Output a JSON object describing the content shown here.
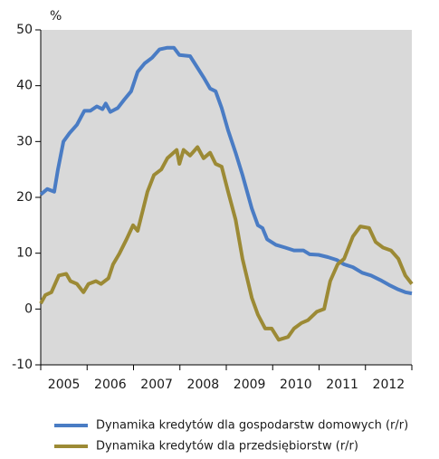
{
  "chart_data": {
    "type": "line",
    "y_unit": "%",
    "xlim": [
      2005,
      2013
    ],
    "xticks": [
      2005,
      2006,
      2007,
      2008,
      2009,
      2010,
      2011,
      2012,
      2013
    ],
    "year_labels": [
      "2005",
      "2006",
      "2007",
      "2008",
      "2009",
      "2010",
      "2011",
      "2012"
    ],
    "ylim": [
      -10,
      50
    ],
    "yticks": [
      -10,
      0,
      10,
      20,
      30,
      40,
      50
    ],
    "background": "#d9d9d9",
    "series": [
      {
        "name": "Dynamika kredytów dla gospodarstw domowych (r/r)",
        "color": "#4a7cc4",
        "x": [
          2005.0,
          2005.14,
          2005.29,
          2005.37,
          2005.49,
          2005.62,
          2005.78,
          2005.94,
          2006.07,
          2006.21,
          2006.33,
          2006.4,
          2006.5,
          2006.66,
          2006.8,
          2006.95,
          2007.09,
          2007.24,
          2007.4,
          2007.56,
          2007.73,
          2007.87,
          2007.99,
          2008.22,
          2008.32,
          2008.51,
          2008.65,
          2008.77,
          2008.9,
          2009.04,
          2009.2,
          2009.35,
          2009.55,
          2009.68,
          2009.78,
          2009.88,
          2010.07,
          2010.27,
          2010.46,
          2010.66,
          2010.8,
          2010.99,
          2011.19,
          2011.38,
          2011.54,
          2011.73,
          2011.93,
          2012.12,
          2012.32,
          2012.51,
          2012.71,
          2012.86,
          2013.0
        ],
        "values": [
          20.5,
          21.5,
          21,
          25,
          30,
          31.5,
          33,
          35.5,
          35.5,
          36.3,
          35.8,
          36.8,
          35.3,
          36,
          37.5,
          39,
          42.5,
          44,
          45,
          46.5,
          46.8,
          46.8,
          45.5,
          45.3,
          44,
          41.5,
          39.5,
          39,
          36,
          32,
          28,
          24,
          18,
          15,
          14.5,
          12.5,
          11.5,
          11,
          10.5,
          10.5,
          9.8,
          9.7,
          9.3,
          8.8,
          8,
          7.5,
          6.5,
          6,
          5.2,
          4.3,
          3.5,
          3,
          2.8
        ]
      },
      {
        "name": "Dynamika kredytów dla przedsiębiorstw (r/r)",
        "color": "#9c8a35",
        "x": [
          2005.0,
          2005.1,
          2005.23,
          2005.39,
          2005.55,
          2005.64,
          2005.78,
          2005.92,
          2006.03,
          2006.19,
          2006.3,
          2006.46,
          2006.56,
          2006.7,
          2006.85,
          2006.99,
          2007.09,
          2007.21,
          2007.3,
          2007.44,
          2007.6,
          2007.73,
          2007.93,
          2007.99,
          2008.08,
          2008.22,
          2008.38,
          2008.51,
          2008.65,
          2008.77,
          2008.9,
          2009.04,
          2009.2,
          2009.35,
          2009.55,
          2009.68,
          2009.84,
          2009.98,
          2010.13,
          2010.33,
          2010.46,
          2010.62,
          2010.76,
          2010.95,
          2011.11,
          2011.24,
          2011.4,
          2011.54,
          2011.73,
          2011.89,
          2012.08,
          2012.22,
          2012.38,
          2012.55,
          2012.71,
          2012.86,
          2013.0
        ],
        "values": [
          1,
          2.5,
          3,
          6,
          6.3,
          5,
          4.5,
          3,
          4.5,
          5,
          4.5,
          5.5,
          8,
          10,
          12.5,
          15,
          14,
          18,
          21,
          24,
          25,
          27,
          28.5,
          26,
          28.5,
          27.5,
          29,
          27,
          28,
          26,
          25.5,
          21,
          16,
          9,
          2,
          -1,
          -3.5,
          -3.5,
          -5.5,
          -5,
          -3.5,
          -2.5,
          -2,
          -0.5,
          0,
          5,
          8,
          9,
          13,
          14.8,
          14.5,
          12,
          11,
          10.5,
          9,
          6,
          4.5
        ]
      }
    ]
  }
}
